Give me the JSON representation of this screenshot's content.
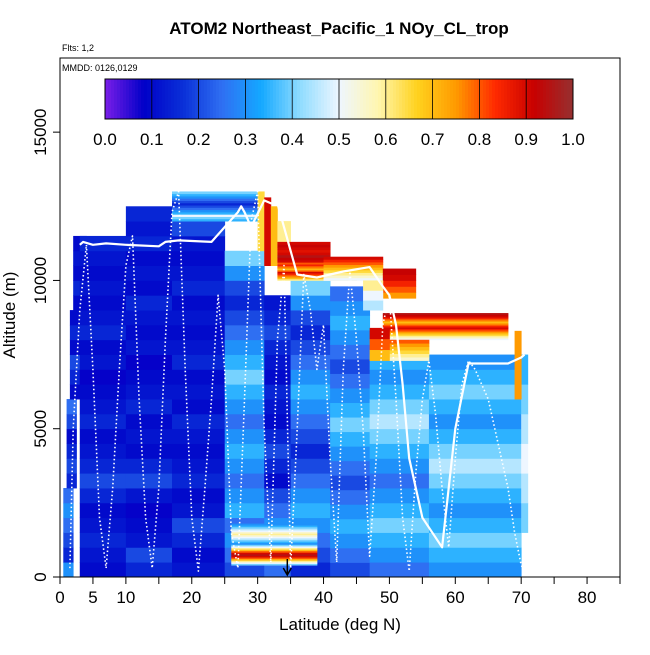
{
  "chart_data": {
    "type": "heatmap",
    "title": "ATOM2 Northeast_Pacific_1 NOy_CL_trop",
    "flights_note": "Flts: 1,2",
    "date_note": "MMDD: 0126,0129",
    "xlabel": "Latitude (deg N)",
    "ylabel": "Altitude (m)",
    "xlim": [
      0,
      85
    ],
    "ylim": [
      0,
      17500
    ],
    "x_ticks": [
      0,
      5,
      10,
      20,
      30,
      40,
      50,
      60,
      70,
      80
    ],
    "x_minor_ticks": [
      15,
      25,
      35,
      45,
      55,
      65,
      75,
      85
    ],
    "y_ticks": [
      0,
      5000,
      10000,
      15000
    ],
    "grid": false,
    "colorbar": {
      "position": "top",
      "range": [
        0,
        1
      ],
      "ticks": [
        "0.0",
        "0.1",
        "0.2",
        "0.3",
        "0.4",
        "0.5",
        "0.6",
        "0.7",
        "0.8",
        "0.9",
        "1.0"
      ],
      "colors": [
        "#7a1ee8",
        "#0000c8",
        "#0a30d8",
        "#2f6ff2",
        "#14a8ff",
        "#8fdcff",
        "#eef6ff",
        "#fff6b0",
        "#ffd21e",
        "#ff9a00",
        "#ff2a00",
        "#c80000",
        "#963030"
      ]
    },
    "columns": [
      {
        "lat": [
          0.5,
          2
        ],
        "alt": [
          0,
          500
        ],
        "values": [
          0.3
        ]
      },
      {
        "lat": [
          0.5,
          2
        ],
        "alt": [
          500,
          3000
        ],
        "values": [
          0.15,
          0.2,
          0.25,
          0.3,
          0.25
        ]
      },
      {
        "lat": [
          1,
          2.5
        ],
        "alt": [
          3000,
          6000
        ],
        "values": [
          0.15,
          0.2,
          0.15,
          0.1,
          0.2,
          0.25
        ]
      },
      {
        "lat": [
          1.5,
          3
        ],
        "alt": [
          6000,
          9000
        ],
        "values": [
          0.1,
          0.15,
          0.2,
          0.1,
          0.15,
          0.1
        ]
      },
      {
        "lat": [
          2,
          4
        ],
        "alt": [
          9000,
          11500
        ],
        "values": [
          0.1,
          0.15,
          0.1,
          0.12,
          0.1
        ]
      },
      {
        "lat": [
          3,
          10
        ],
        "alt": [
          0,
          11500
        ],
        "values": [
          0.1,
          0.12,
          0.15,
          0.12,
          0.1,
          0.15,
          0.2,
          0.15,
          0.12,
          0.1,
          0.15,
          0.12,
          0.1,
          0.08,
          0.12,
          0.1,
          0.15,
          0.12,
          0.1,
          0.12,
          0.1,
          0.12,
          0.15
        ]
      },
      {
        "lat": [
          10,
          17
        ],
        "alt": [
          0,
          11500
        ],
        "values": [
          0.15,
          0.2,
          0.12,
          0.1,
          0.08,
          0.12,
          0.2,
          0.15,
          0.1,
          0.12,
          0.1,
          0.15,
          0.12,
          0.1,
          0.08,
          0.12,
          0.1,
          0.12,
          0.15,
          0.1,
          0.12,
          0.1,
          0.15
        ]
      },
      {
        "lat": [
          10,
          17
        ],
        "alt": [
          11500,
          12500
        ],
        "values": [
          0.12,
          0.15
        ]
      },
      {
        "lat": [
          17,
          25
        ],
        "alt": [
          0,
          12500
        ],
        "values": [
          0.12,
          0.1,
          0.15,
          0.2,
          0.12,
          0.1,
          0.15,
          0.12,
          0.1,
          0.12,
          0.15,
          0.1,
          0.12,
          0.1,
          0.15,
          0.12,
          0.1,
          0.12,
          0.1,
          0.15,
          0.12,
          0.1,
          0.12,
          0.2,
          0.25
        ]
      },
      {
        "lat": [
          25,
          31
        ],
        "alt": [
          0,
          11000
        ],
        "values": [
          0.2,
          0.25,
          0.3,
          0.25,
          0.35,
          0.3,
          0.25,
          0.3,
          0.35,
          0.3,
          0.25,
          0.3,
          0.35,
          0.4,
          0.35,
          0.3,
          0.25,
          0.2,
          0.15,
          0.2,
          0.3,
          0.4
        ]
      },
      {
        "lat": [
          31,
          35
        ],
        "alt": [
          0,
          3000
        ],
        "values": [
          0.25,
          0.3,
          0.35,
          0.3,
          0.25,
          0.2
        ]
      },
      {
        "lat": [
          31,
          35
        ],
        "alt": [
          3000,
          9500
        ],
        "values": [
          0.1,
          0.15,
          0.2,
          0.15,
          0.1,
          0.12,
          0.15,
          0.1,
          0.12,
          0.15,
          0.2,
          0.15,
          0.12
        ]
      },
      {
        "lat": [
          35,
          41
        ],
        "alt": [
          0,
          10000
        ],
        "values": [
          0.15,
          0.2,
          0.25,
          0.3,
          0.35,
          0.3,
          0.25,
          0.2,
          0.15,
          0.2,
          0.25,
          0.3,
          0.35,
          0.3,
          0.25,
          0.2,
          0.15,
          0.2,
          0.3,
          0.4
        ]
      },
      {
        "lat": [
          41,
          47
        ],
        "alt": [
          0,
          9800
        ],
        "values": [
          0.2,
          0.25,
          0.3,
          0.35,
          0.3,
          0.25,
          0.2,
          0.25,
          0.3,
          0.35,
          0.4,
          0.35,
          0.3,
          0.25,
          0.2,
          0.25,
          0.3,
          0.35,
          0.3,
          0.25
        ]
      },
      {
        "lat": [
          47,
          56
        ],
        "alt": [
          0,
          7500
        ],
        "values": [
          0.25,
          0.3,
          0.35,
          0.4,
          0.35,
          0.3,
          0.25,
          0.3,
          0.35,
          0.4,
          0.45,
          0.4,
          0.35,
          0.3,
          0.35
        ]
      },
      {
        "lat": [
          56,
          70
        ],
        "alt": [
          0,
          7500
        ],
        "values": [
          0.3,
          0.35,
          0.4,
          0.35,
          0.3,
          0.35,
          0.4,
          0.45,
          0.4,
          0.35,
          0.3,
          0.35,
          0.4,
          0.35,
          0.3
        ]
      },
      {
        "lat": [
          70,
          71
        ],
        "alt": [
          1500,
          7500
        ],
        "values": [
          0.4,
          0.45,
          0.5,
          0.45,
          0.4,
          0.35
        ]
      }
    ],
    "high_bands": [
      {
        "lat": [
          17,
          30
        ],
        "alt": [
          12000,
          13000
        ],
        "values": [
          0.35,
          0.4,
          0.5,
          0.35,
          0.3,
          0.25,
          0.2,
          0.15,
          0.2,
          0.25,
          0.3,
          0.35,
          0.4
        ]
      },
      {
        "lat": [
          30,
          31
        ],
        "alt": [
          11000,
          13000
        ],
        "values": [
          0.65
        ]
      },
      {
        "lat": [
          31,
          32
        ],
        "alt": [
          10500,
          12800
        ],
        "values": [
          0.9
        ]
      },
      {
        "lat": [
          32,
          33
        ],
        "alt": [
          10500,
          12500
        ],
        "values": [
          0.7
        ]
      },
      {
        "lat": [
          33,
          35
        ],
        "alt": [
          10500,
          12000
        ],
        "values": [
          0.5,
          0.6
        ]
      },
      {
        "lat": [
          33,
          41
        ],
        "alt": [
          10600,
          11300
        ],
        "values": [
          0.9,
          0.92,
          0.95,
          0.9,
          0.88,
          0.9,
          0.92,
          0.9
        ]
      },
      {
        "lat": [
          33,
          45
        ],
        "alt": [
          10000,
          10600
        ],
        "values": [
          0.6,
          0.7,
          0.75,
          0.8,
          0.85,
          0.9,
          0.8,
          0.7,
          0.75,
          0.8,
          0.85,
          0.8
        ]
      },
      {
        "lat": [
          40,
          49
        ],
        "alt": [
          10000,
          10800
        ],
        "values": [
          0.5,
          0.55,
          0.6,
          0.65,
          0.7,
          0.75,
          0.8,
          0.85,
          0.9
        ]
      },
      {
        "lat": [
          49,
          54
        ],
        "alt": [
          9400,
          10400
        ],
        "values": [
          0.75,
          0.8,
          0.85,
          0.9,
          0.92
        ]
      },
      {
        "lat": [
          46,
          49
        ],
        "alt": [
          9000,
          10000
        ],
        "values": [
          0.45,
          0.5,
          0.6
        ]
      },
      {
        "lat": [
          49,
          68
        ],
        "alt": [
          8000,
          8900
        ],
        "values": [
          0.5,
          0.55,
          0.6,
          0.65,
          0.7,
          0.75,
          0.8,
          0.85,
          0.9,
          0.85,
          0.8,
          0.75,
          0.7,
          0.75,
          0.8,
          0.85,
          0.9,
          0.92,
          0.95
        ]
      },
      {
        "lat": [
          50,
          56
        ],
        "alt": [
          7300,
          8000
        ],
        "values": [
          0.55,
          0.6,
          0.65,
          0.7,
          0.75,
          0.8
        ]
      },
      {
        "lat": [
          47,
          50
        ],
        "alt": [
          7300,
          8400
        ],
        "values": [
          0.7,
          0.8,
          0.9
        ]
      },
      {
        "lat": [
          69,
          70
        ],
        "alt": [
          6000,
          8300
        ],
        "values": [
          0.75
        ]
      },
      {
        "lat": [
          26,
          39
        ],
        "alt": [
          400,
          1100
        ],
        "values": [
          0.4,
          0.5,
          0.6,
          0.7,
          0.8,
          0.9,
          0.95,
          0.9,
          0.8,
          0.7,
          0.6,
          0.5,
          0.4
        ]
      },
      {
        "lat": [
          26,
          39
        ],
        "alt": [
          1100,
          1800
        ],
        "values": [
          0.3,
          0.35,
          0.4,
          0.45,
          0.5,
          0.55,
          0.6,
          0.55,
          0.5,
          0.45,
          0.4,
          0.35,
          0.3
        ]
      }
    ],
    "flight_tracks": [
      {
        "name": "solid",
        "style": "solid",
        "x": [
          3,
          3.5,
          5,
          7,
          10,
          15,
          16,
          18,
          23,
          27,
          27.5,
          28,
          29,
          31,
          32,
          33,
          36,
          39,
          40,
          43,
          47,
          49,
          50,
          51,
          52,
          53,
          55,
          58,
          59,
          60,
          62,
          66,
          68,
          70,
          70.5
        ],
        "y": [
          11200,
          11300,
          11200,
          11250,
          11200,
          11150,
          11300,
          11350,
          11300,
          12300,
          12500,
          12300,
          11800,
          12700,
          12600,
          12600,
          10200,
          10100,
          10150,
          10300,
          10450,
          9800,
          9500,
          8500,
          6500,
          4000,
          2000,
          1000,
          3000,
          5000,
          7200,
          7200,
          7200,
          7400,
          7500
        ]
      },
      {
        "name": "dotted",
        "style": "dotted",
        "x": [
          1.5,
          2,
          3,
          4,
          5,
          6,
          7,
          8,
          9,
          10,
          11,
          12,
          13,
          14,
          15,
          16,
          17,
          18,
          19,
          20,
          21,
          22,
          23,
          24,
          25,
          26,
          27,
          28,
          29,
          30,
          31,
          32,
          33,
          34,
          35,
          36,
          37,
          38,
          39,
          40,
          41,
          42,
          43,
          44,
          45,
          46,
          47,
          48,
          49,
          50,
          51,
          52,
          53,
          54,
          55,
          56,
          57,
          58,
          59,
          60,
          61,
          62,
          63,
          64,
          65,
          66,
          67,
          68,
          69,
          70,
          70.5
        ],
        "y": [
          300,
          5000,
          9000,
          11200,
          7000,
          2000,
          300,
          3000,
          7000,
          10500,
          11500,
          6000,
          2000,
          300,
          3000,
          8000,
          12300,
          13000,
          7000,
          2000,
          200,
          3000,
          6000,
          9500,
          7000,
          1500,
          300,
          6000,
          12000,
          13000,
          5000,
          500,
          8000,
          10500,
          300,
          5000,
          10200,
          9000,
          7000,
          8500,
          4000,
          500,
          7000,
          10300,
          8000,
          5000,
          700,
          4000,
          8500,
          9500,
          6000,
          2000,
          200,
          3500,
          6000,
          7300,
          5500,
          3000,
          1000,
          4000,
          6500,
          7300,
          7000,
          6500,
          6000,
          5000,
          4000,
          3000,
          1500,
          400,
          200
        ]
      }
    ],
    "marker": {
      "lat": 34.5,
      "alt": 0,
      "symbol": "arrow-down"
    }
  }
}
